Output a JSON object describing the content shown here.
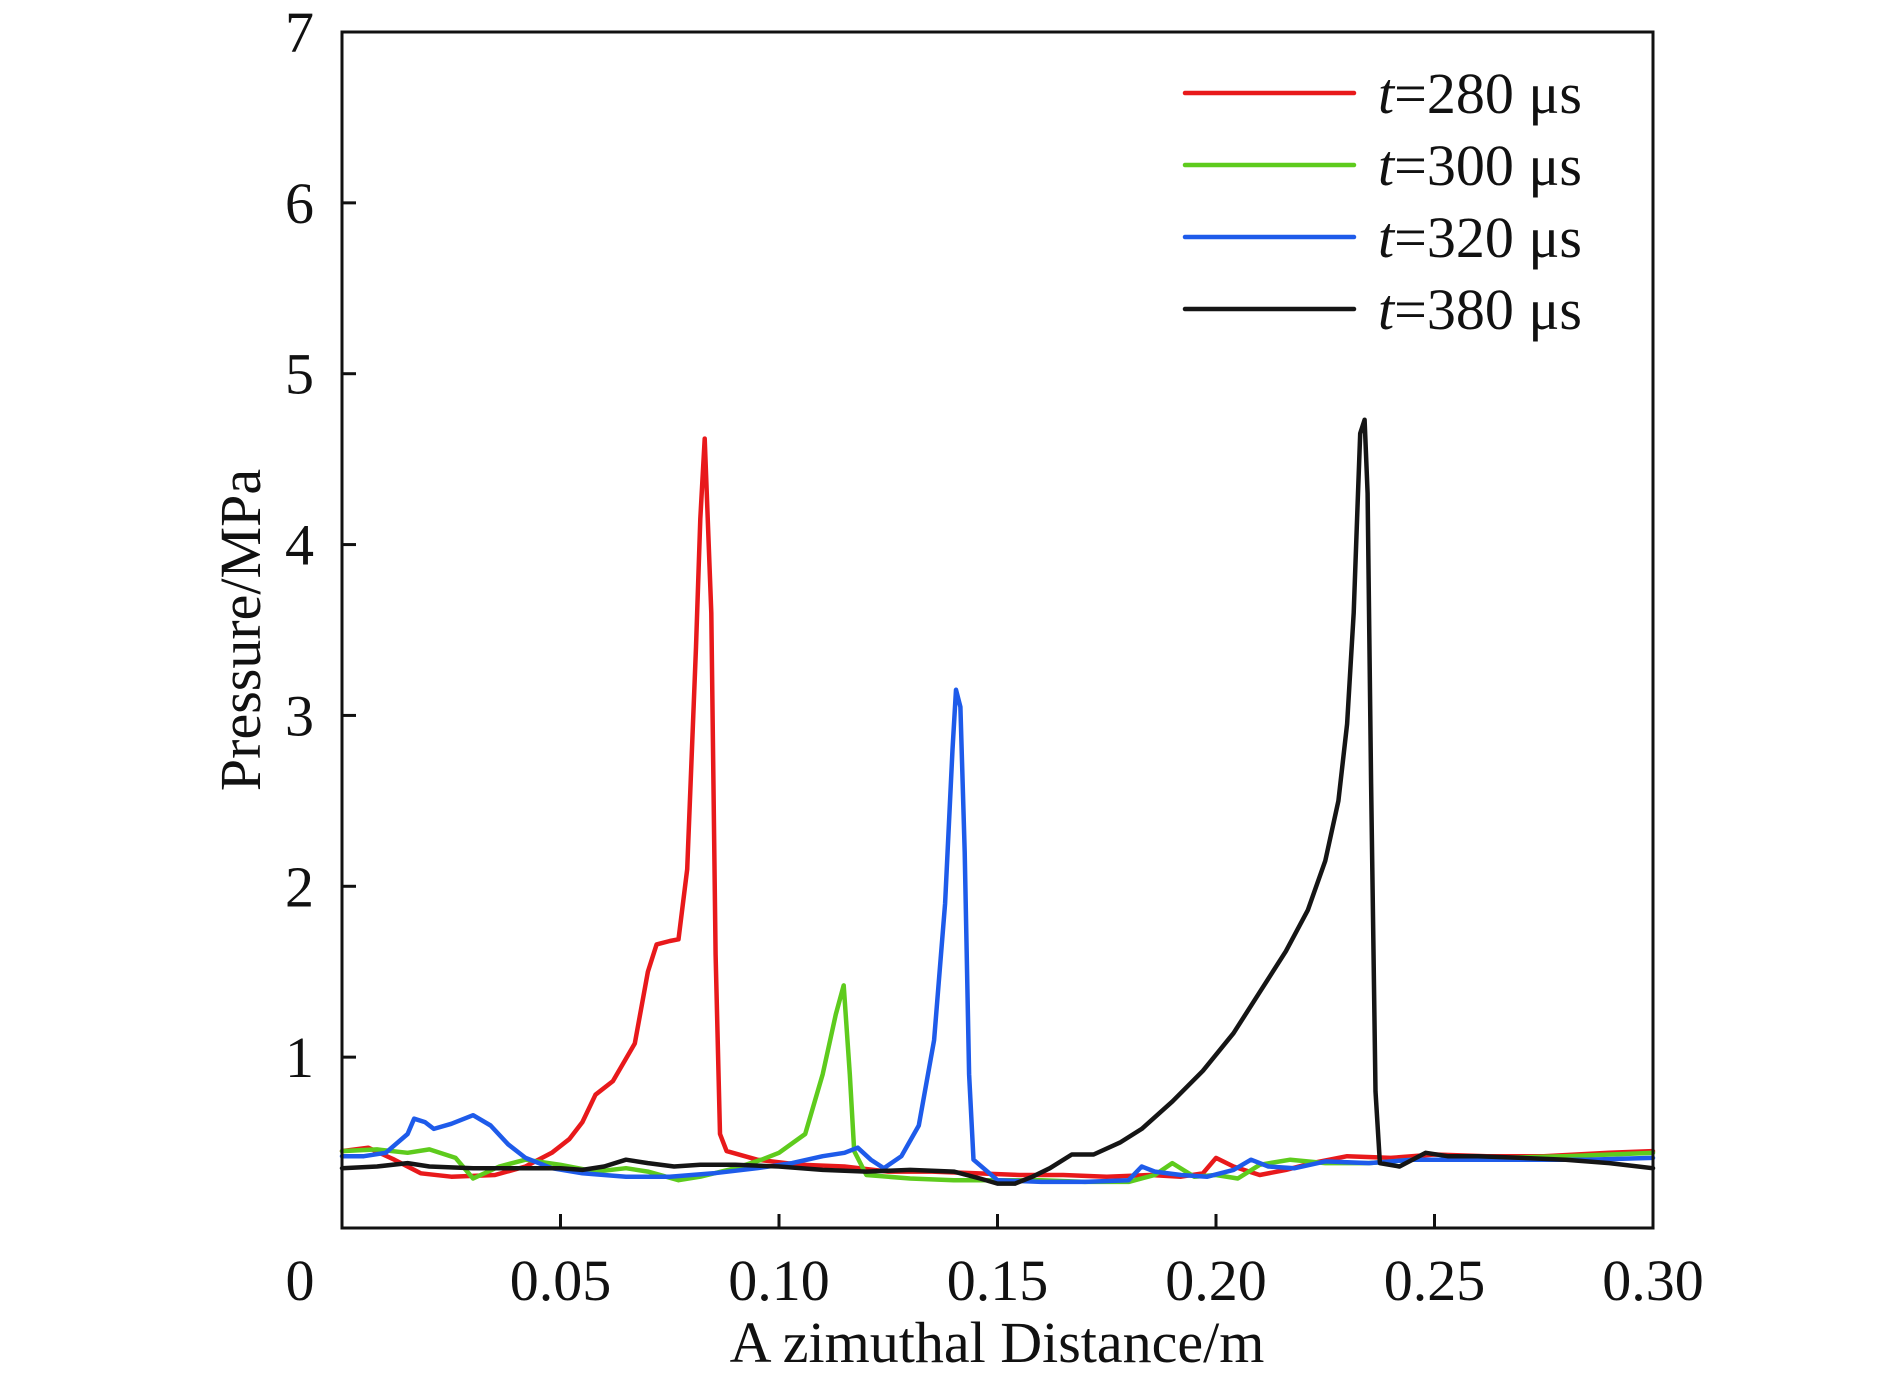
{
  "chart_data": {
    "type": "line",
    "title": "",
    "xlabel": "A zimuthal Distance/m",
    "ylabel": "Pressure/MPa",
    "xlim": [
      0,
      0.3
    ],
    "ylim": [
      0,
      7
    ],
    "x_tick_labels": [
      "0",
      "0.05",
      "0.10",
      "0.15",
      "0.20",
      "0.25",
      "0.30"
    ],
    "x_tick_values": [
      0,
      0.05,
      0.1,
      0.15,
      0.2,
      0.25,
      0.3
    ],
    "y_tick_labels": [
      "1",
      "2",
      "3",
      "4",
      "5",
      "6",
      "7"
    ],
    "y_tick_values": [
      1,
      2,
      3,
      4,
      5,
      6,
      7
    ],
    "grid": false,
    "legend_position": "top-right",
    "series": [
      {
        "name": "t=280 μs",
        "legend_var": "t",
        "legend_rest": "=280 μs",
        "color": "#e8191b",
        "points": [
          [
            0,
            0.45
          ],
          [
            0.006,
            0.47
          ],
          [
            0.012,
            0.4
          ],
          [
            0.018,
            0.32
          ],
          [
            0.025,
            0.3
          ],
          [
            0.035,
            0.31
          ],
          [
            0.042,
            0.36
          ],
          [
            0.048,
            0.44
          ],
          [
            0.052,
            0.52
          ],
          [
            0.055,
            0.62
          ],
          [
            0.058,
            0.78
          ],
          [
            0.062,
            0.86
          ],
          [
            0.067,
            1.08
          ],
          [
            0.07,
            1.5
          ],
          [
            0.072,
            1.66
          ],
          [
            0.075,
            1.68
          ],
          [
            0.077,
            1.69
          ],
          [
            0.079,
            2.1
          ],
          [
            0.081,
            3.4
          ],
          [
            0.082,
            4.15
          ],
          [
            0.083,
            4.62
          ],
          [
            0.0845,
            3.6
          ],
          [
            0.0855,
            1.6
          ],
          [
            0.0865,
            0.55
          ],
          [
            0.088,
            0.45
          ],
          [
            0.095,
            0.4
          ],
          [
            0.105,
            0.37
          ],
          [
            0.115,
            0.36
          ],
          [
            0.125,
            0.33
          ],
          [
            0.135,
            0.33
          ],
          [
            0.145,
            0.32
          ],
          [
            0.155,
            0.31
          ],
          [
            0.165,
            0.31
          ],
          [
            0.175,
            0.3
          ],
          [
            0.185,
            0.31
          ],
          [
            0.192,
            0.3
          ],
          [
            0.197,
            0.32
          ],
          [
            0.2,
            0.41
          ],
          [
            0.204,
            0.36
          ],
          [
            0.21,
            0.31
          ],
          [
            0.216,
            0.34
          ],
          [
            0.222,
            0.38
          ],
          [
            0.23,
            0.42
          ],
          [
            0.24,
            0.41
          ],
          [
            0.25,
            0.43
          ],
          [
            0.262,
            0.42
          ],
          [
            0.275,
            0.42
          ],
          [
            0.29,
            0.44
          ],
          [
            0.3,
            0.45
          ]
        ]
      },
      {
        "name": "t=300 μs",
        "legend_var": "t",
        "legend_rest": "=300 μs",
        "color": "#5ecb1d",
        "points": [
          [
            0,
            0.45
          ],
          [
            0.008,
            0.46
          ],
          [
            0.015,
            0.44
          ],
          [
            0.02,
            0.46
          ],
          [
            0.026,
            0.41
          ],
          [
            0.03,
            0.29
          ],
          [
            0.036,
            0.36
          ],
          [
            0.042,
            0.4
          ],
          [
            0.05,
            0.37
          ],
          [
            0.058,
            0.33
          ],
          [
            0.065,
            0.35
          ],
          [
            0.07,
            0.33
          ],
          [
            0.077,
            0.28
          ],
          [
            0.082,
            0.3
          ],
          [
            0.09,
            0.35
          ],
          [
            0.096,
            0.4
          ],
          [
            0.1,
            0.44
          ],
          [
            0.106,
            0.55
          ],
          [
            0.11,
            0.9
          ],
          [
            0.113,
            1.25
          ],
          [
            0.1148,
            1.42
          ],
          [
            0.1162,
            0.9
          ],
          [
            0.1172,
            0.45
          ],
          [
            0.12,
            0.31
          ],
          [
            0.13,
            0.29
          ],
          [
            0.14,
            0.28
          ],
          [
            0.15,
            0.28
          ],
          [
            0.16,
            0.28
          ],
          [
            0.17,
            0.27
          ],
          [
            0.18,
            0.27
          ],
          [
            0.186,
            0.31
          ],
          [
            0.19,
            0.38
          ],
          [
            0.195,
            0.3
          ],
          [
            0.2,
            0.31
          ],
          [
            0.205,
            0.29
          ],
          [
            0.21,
            0.37
          ],
          [
            0.217,
            0.4
          ],
          [
            0.225,
            0.38
          ],
          [
            0.235,
            0.38
          ],
          [
            0.245,
            0.4
          ],
          [
            0.255,
            0.4
          ],
          [
            0.265,
            0.41
          ],
          [
            0.28,
            0.42
          ],
          [
            0.3,
            0.44
          ]
        ]
      },
      {
        "name": "t=320 μs",
        "legend_var": "t",
        "legend_rest": "=320 μs",
        "color": "#1e5bea",
        "points": [
          [
            0,
            0.42
          ],
          [
            0.005,
            0.42
          ],
          [
            0.01,
            0.44
          ],
          [
            0.015,
            0.55
          ],
          [
            0.0165,
            0.64
          ],
          [
            0.019,
            0.62
          ],
          [
            0.021,
            0.58
          ],
          [
            0.025,
            0.61
          ],
          [
            0.03,
            0.66
          ],
          [
            0.034,
            0.6
          ],
          [
            0.038,
            0.49
          ],
          [
            0.042,
            0.41
          ],
          [
            0.048,
            0.35
          ],
          [
            0.055,
            0.32
          ],
          [
            0.065,
            0.3
          ],
          [
            0.075,
            0.3
          ],
          [
            0.085,
            0.32
          ],
          [
            0.095,
            0.35
          ],
          [
            0.103,
            0.38
          ],
          [
            0.11,
            0.42
          ],
          [
            0.115,
            0.44
          ],
          [
            0.118,
            0.47
          ],
          [
            0.121,
            0.4
          ],
          [
            0.124,
            0.35
          ],
          [
            0.128,
            0.42
          ],
          [
            0.132,
            0.6
          ],
          [
            0.1355,
            1.1
          ],
          [
            0.138,
            1.9
          ],
          [
            0.1397,
            2.8
          ],
          [
            0.1405,
            3.15
          ],
          [
            0.1415,
            3.05
          ],
          [
            0.1425,
            2.2
          ],
          [
            0.1435,
            0.9
          ],
          [
            0.1445,
            0.4
          ],
          [
            0.15,
            0.28
          ],
          [
            0.16,
            0.27
          ],
          [
            0.17,
            0.27
          ],
          [
            0.18,
            0.28
          ],
          [
            0.183,
            0.36
          ],
          [
            0.186,
            0.33
          ],
          [
            0.192,
            0.31
          ],
          [
            0.198,
            0.3
          ],
          [
            0.204,
            0.34
          ],
          [
            0.208,
            0.4
          ],
          [
            0.212,
            0.36
          ],
          [
            0.218,
            0.35
          ],
          [
            0.225,
            0.39
          ],
          [
            0.235,
            0.38
          ],
          [
            0.245,
            0.4
          ],
          [
            0.255,
            0.4
          ],
          [
            0.27,
            0.4
          ],
          [
            0.285,
            0.4
          ],
          [
            0.3,
            0.41
          ]
        ]
      },
      {
        "name": "t=380 μs",
        "legend_var": "t",
        "legend_rest": "=380 μs",
        "color": "#151515",
        "points": [
          [
            0,
            0.35
          ],
          [
            0.008,
            0.36
          ],
          [
            0.015,
            0.38
          ],
          [
            0.02,
            0.36
          ],
          [
            0.03,
            0.35
          ],
          [
            0.04,
            0.35
          ],
          [
            0.05,
            0.35
          ],
          [
            0.055,
            0.34
          ],
          [
            0.06,
            0.36
          ],
          [
            0.065,
            0.4
          ],
          [
            0.07,
            0.38
          ],
          [
            0.076,
            0.36
          ],
          [
            0.082,
            0.37
          ],
          [
            0.09,
            0.37
          ],
          [
            0.1,
            0.36
          ],
          [
            0.11,
            0.34
          ],
          [
            0.12,
            0.33
          ],
          [
            0.13,
            0.34
          ],
          [
            0.14,
            0.33
          ],
          [
            0.146,
            0.29
          ],
          [
            0.15,
            0.26
          ],
          [
            0.154,
            0.26
          ],
          [
            0.158,
            0.3
          ],
          [
            0.162,
            0.35
          ],
          [
            0.167,
            0.43
          ],
          [
            0.172,
            0.43
          ],
          [
            0.178,
            0.5
          ],
          [
            0.183,
            0.58
          ],
          [
            0.19,
            0.74
          ],
          [
            0.197,
            0.92
          ],
          [
            0.204,
            1.14
          ],
          [
            0.21,
            1.38
          ],
          [
            0.216,
            1.62
          ],
          [
            0.221,
            1.86
          ],
          [
            0.225,
            2.15
          ],
          [
            0.228,
            2.5
          ],
          [
            0.23,
            2.95
          ],
          [
            0.2315,
            3.6
          ],
          [
            0.2325,
            4.3
          ],
          [
            0.233,
            4.65
          ],
          [
            0.234,
            4.73
          ],
          [
            0.2347,
            4.3
          ],
          [
            0.2355,
            2.6
          ],
          [
            0.2365,
            0.8
          ],
          [
            0.2375,
            0.38
          ],
          [
            0.242,
            0.36
          ],
          [
            0.248,
            0.44
          ],
          [
            0.253,
            0.42
          ],
          [
            0.26,
            0.42
          ],
          [
            0.27,
            0.41
          ],
          [
            0.28,
            0.4
          ],
          [
            0.29,
            0.38
          ],
          [
            0.3,
            0.35
          ]
        ]
      }
    ]
  }
}
